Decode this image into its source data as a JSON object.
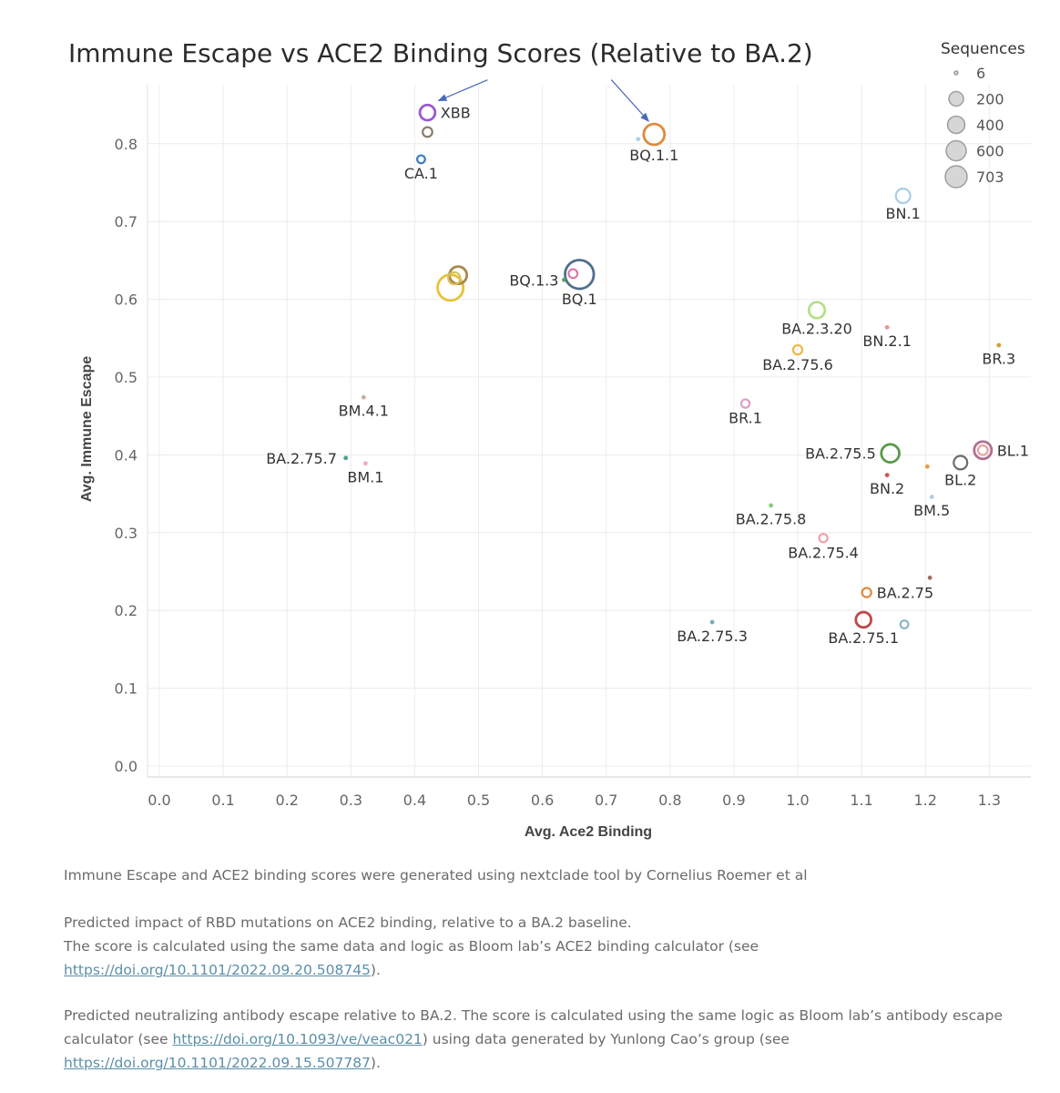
{
  "chart_data": {
    "type": "scatter",
    "title": "Immune Escape vs ACE2 Binding Scores (Relative to BA.2)",
    "xlabel": "Avg. Ace2 Binding",
    "ylabel": "Avg. Immune Escape",
    "xlim": [
      -0.02,
      1.38
    ],
    "ylim": [
      -0.02,
      0.9
    ],
    "xticks": [
      "0.0",
      "0.1",
      "0.2",
      "0.3",
      "0.4",
      "0.5",
      "0.6",
      "0.7",
      "0.8",
      "0.9",
      "1.0",
      "1.1",
      "1.2",
      "1.3"
    ],
    "yticks": [
      "0.0",
      "0.1",
      "0.2",
      "0.3",
      "0.4",
      "0.5",
      "0.6",
      "0.7",
      "0.8"
    ],
    "legend": {
      "title": "Sequences",
      "placement": "top-right",
      "entries": [
        {
          "label": "6",
          "size": 6
        },
        {
          "label": "200",
          "size": 200
        },
        {
          "label": "400",
          "size": 400
        },
        {
          "label": "600",
          "size": 600
        },
        {
          "label": "703",
          "size": 703
        }
      ]
    },
    "points": [
      {
        "label": "XBB",
        "x": 0.42,
        "y": 0.84,
        "size": 150,
        "color": "#9b59d0",
        "label_pos": "right"
      },
      {
        "label": "",
        "x": 0.42,
        "y": 0.815,
        "size": 40,
        "color": "#8b7b6b"
      },
      {
        "label": "CA.1",
        "x": 0.41,
        "y": 0.78,
        "size": 20,
        "color": "#3f7fbf",
        "label_pos": "below"
      },
      {
        "label": "BQ.1.1",
        "x": 0.775,
        "y": 0.812,
        "size": 330,
        "color": "#e08a3c",
        "label_pos": "below"
      },
      {
        "label": "",
        "x": 0.75,
        "y": 0.806,
        "size": 6,
        "color": "#a9cfe3"
      },
      {
        "label": "BN.1",
        "x": 1.165,
        "y": 0.733,
        "size": 130,
        "color": "#a9cde8",
        "label_pos": "below"
      },
      {
        "label": "",
        "x": 0.456,
        "y": 0.615,
        "size": 540,
        "color": "#e8c23a"
      },
      {
        "label": "",
        "x": 0.468,
        "y": 0.631,
        "size": 210,
        "color": "#a8894f"
      },
      {
        "label": "",
        "x": 0.462,
        "y": 0.627,
        "size": 80,
        "color": "#d8c35a"
      },
      {
        "label": "BQ.1",
        "x": 0.658,
        "y": 0.632,
        "size": 703,
        "color": "#4f6f8f",
        "label_pos": "below"
      },
      {
        "label": "",
        "x": 0.648,
        "y": 0.633,
        "size": 30,
        "color": "#d979a8"
      },
      {
        "label": "BQ.1.3",
        "x": 0.634,
        "y": 0.625,
        "size": 8,
        "color": "#5a9a5a",
        "label_pos": "left"
      },
      {
        "label": "BA.2.3.20",
        "x": 1.03,
        "y": 0.586,
        "size": 170,
        "color": "#b6e08a",
        "label_pos": "below"
      },
      {
        "label": "BN.2.1",
        "x": 1.14,
        "y": 0.564,
        "size": 8,
        "color": "#f08a8a",
        "label_pos": "below"
      },
      {
        "label": "BR.3",
        "x": 1.315,
        "y": 0.541,
        "size": 8,
        "color": "#c99a2e",
        "label_pos": "below"
      },
      {
        "label": "BA.2.75.6",
        "x": 1.0,
        "y": 0.535,
        "size": 35,
        "color": "#f0b84a",
        "label_pos": "below"
      },
      {
        "label": "BM.4.1",
        "x": 0.32,
        "y": 0.474,
        "size": 8,
        "color": "#c9a89a",
        "label_pos": "below"
      },
      {
        "label": "BR.1",
        "x": 0.918,
        "y": 0.466,
        "size": 25,
        "color": "#d9a0c9",
        "label_pos": "below"
      },
      {
        "label": "BL.1",
        "x": 1.29,
        "y": 0.406,
        "size": 210,
        "color": "#b07090",
        "label_pos": "right"
      },
      {
        "label": "",
        "x": 1.29,
        "y": 0.406,
        "size": 40,
        "color": "#e8a0a0"
      },
      {
        "label": "BA.2.75.5",
        "x": 1.145,
        "y": 0.402,
        "size": 230,
        "color": "#5a9a4a",
        "label_pos": "left"
      },
      {
        "label": "BA.2.75.7",
        "x": 0.292,
        "y": 0.396,
        "size": 12,
        "color": "#3f9a8a",
        "label_pos": "left"
      },
      {
        "label": "BL.2",
        "x": 1.255,
        "y": 0.39,
        "size": 110,
        "color": "#6b6b6b",
        "label_pos": "below"
      },
      {
        "label": "BM.1",
        "x": 0.323,
        "y": 0.389,
        "size": 12,
        "color": "#f0a8b0",
        "label_pos": "below"
      },
      {
        "label": "",
        "x": 1.203,
        "y": 0.385,
        "size": 8,
        "color": "#e8963c"
      },
      {
        "label": "BN.2",
        "x": 1.14,
        "y": 0.374,
        "size": 8,
        "color": "#d04848",
        "label_pos": "below"
      },
      {
        "label": "BM.5",
        "x": 1.21,
        "y": 0.346,
        "size": 8,
        "color": "#a9cde8",
        "label_pos": "below"
      },
      {
        "label": "BA.2.75.8",
        "x": 0.958,
        "y": 0.335,
        "size": 8,
        "color": "#7acb6a",
        "label_pos": "below"
      },
      {
        "label": "BA.2.75.4",
        "x": 1.04,
        "y": 0.293,
        "size": 25,
        "color": "#f0a0a8",
        "label_pos": "below"
      },
      {
        "label": "",
        "x": 1.207,
        "y": 0.242,
        "size": 10,
        "color": "#9a6a5a"
      },
      {
        "label": "BA.2.75",
        "x": 1.108,
        "y": 0.223,
        "size": 35,
        "color": "#e08a3c",
        "label_pos": "right"
      },
      {
        "label": "BA.2.75.1",
        "x": 1.103,
        "y": 0.188,
        "size": 150,
        "color": "#c04848",
        "label_pos": "below"
      },
      {
        "label": "BA.2.75.3",
        "x": 0.866,
        "y": 0.185,
        "size": 12,
        "color": "#6aa8b8",
        "label_pos": "below"
      },
      {
        "label": "",
        "x": 1.167,
        "y": 0.182,
        "size": 20,
        "color": "#8ab8c8"
      }
    ],
    "annotations": [
      {
        "type": "arrow",
        "points_to": "XBB"
      },
      {
        "type": "arrow",
        "points_to": "BQ.1.1"
      }
    ]
  },
  "notes": {
    "source": "Immune Escape and ACE2 binding scores were generated using nextclade tool by Cornelius Roemer et al",
    "ace2_line1": "Predicted impact of RBD mutations on ACE2 binding, relative to a BA.2 baseline.",
    "ace2_line2": "The score is calculated using the same data and logic as Bloom lab’s ACE2 binding calculator (see",
    "ace2_link": "https://doi.org/10.1101/2022.09.20.508745",
    "ace2_end": ").",
    "escape_line1": "Predicted neutralizing antibody escape relative to BA.2. The score is calculated using the same logic as Bloom lab’s antibody escape",
    "escape_line2_a": "calculator (see ",
    "escape_link1": "https://doi.org/10.1093/ve/veac021",
    "escape_line2_b": ") using data generated by Yunlong Cao’s group (see",
    "escape_link2": "https://doi.org/10.1101/2022.09.15.507787",
    "escape_end": ")."
  }
}
